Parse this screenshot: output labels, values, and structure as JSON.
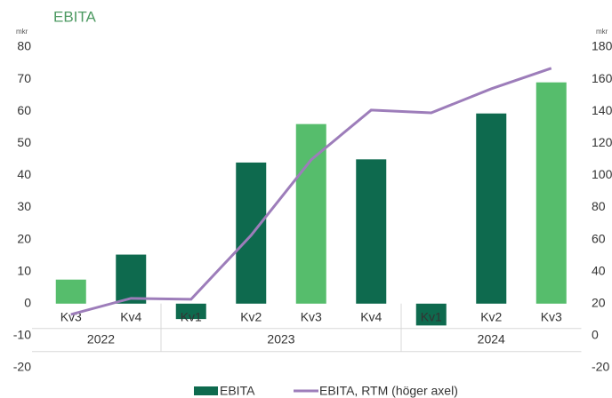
{
  "chart_data": {
    "type": "bar_line",
    "title": "EBITA",
    "y_unit": "mkr",
    "y2_unit": "mkr",
    "categories": [
      "Kv3",
      "Kv4",
      "Kv1",
      "Kv2",
      "Kv3",
      "Kv4",
      "Kv1",
      "Kv2",
      "Kv3"
    ],
    "groups": [
      {
        "label": "2022",
        "count": 2
      },
      {
        "label": "2023",
        "count": 4
      },
      {
        "label": "2024",
        "count": 3
      }
    ],
    "series": [
      {
        "name": "EBITA",
        "type": "bar",
        "color": "#0e6a4e",
        "colors": [
          "#56bd6c",
          "#0e6a4e",
          "#0e6a4e",
          "#0e6a4e",
          "#56bd6c",
          "#0e6a4e",
          "#0e6a4e",
          "#0e6a4e",
          "#56bd6c"
        ],
        "values": [
          7.5,
          15.3,
          -4.8,
          44,
          56,
          45,
          -6.8,
          59.3,
          69
        ]
      },
      {
        "name": "EBITA, RTM (höger axel)",
        "type": "line",
        "axis": "y2",
        "color": "#9d7dba",
        "values": [
          13.3,
          23.3,
          22.7,
          62.6,
          109.7,
          140.7,
          139,
          154,
          166.8
        ]
      }
    ],
    "ylim": [
      -20,
      80
    ],
    "yticks": [
      -20,
      -10,
      0,
      10,
      20,
      30,
      40,
      50,
      60,
      70,
      80
    ],
    "y2lim": [
      -20,
      180
    ],
    "y2ticks": [
      -20,
      0,
      20,
      40,
      60,
      80,
      100,
      120,
      140,
      160,
      180
    ],
    "grid": false
  }
}
